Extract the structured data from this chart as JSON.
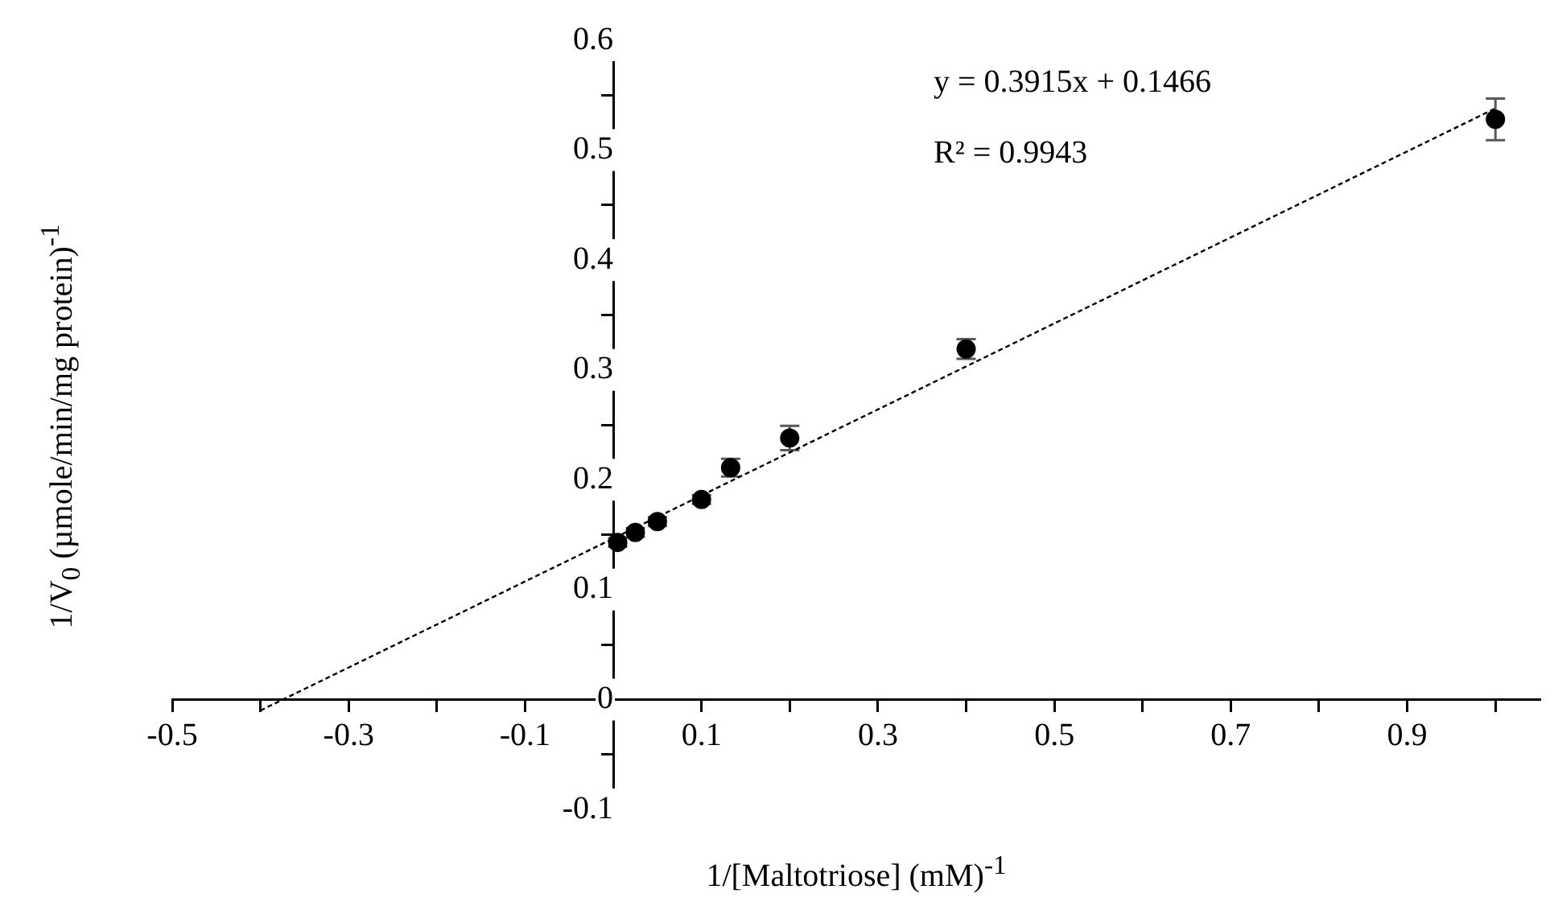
{
  "chart_data": {
    "type": "scatter",
    "xlabel": "1/[Maltotriose] (mM)$^{-1}$",
    "ylabel": "1/V$_{0}$ (µmole/min/mg protein)$^{-1}$",
    "annotations": [
      "y  = 0.3915x + 0.1466",
      "R² = 0.9943"
    ],
    "xlim": [
      -0.5,
      1.05
    ],
    "ylim": [
      -0.1,
      0.6
    ],
    "xticks": [
      -0.5,
      {
        "value": -0.4,
        "label": null
      },
      -0.3,
      {
        "value": -0.2,
        "label": null
      },
      -0.1,
      0.1,
      {
        "value": 0.2,
        "label": null
      },
      0.3,
      {
        "value": 0.4,
        "label": null
      },
      0.5,
      {
        "value": 0.6,
        "label": null
      },
      0.7,
      {
        "value": 0.8,
        "label": null
      },
      0.9,
      {
        "value": 1.0,
        "label": null
      }
    ],
    "yticks": [
      -0.1,
      {
        "value": -0.05,
        "label": null
      },
      0,
      {
        "value": 0.05,
        "label": null
      },
      0.1,
      {
        "value": 0.15,
        "label": null
      },
      0.2,
      {
        "value": 0.25,
        "label": null
      },
      0.3,
      {
        "value": 0.35,
        "label": null
      },
      0.4,
      {
        "value": 0.45,
        "label": null
      },
      0.5,
      {
        "value": 0.55,
        "label": null
      },
      0.6
    ],
    "grid": false,
    "legend": false,
    "series": [
      {
        "type": "line",
        "color": "#000000",
        "marker": "none",
        "line_style": "dotted",
        "x": [
          -0.4,
          1.0
        ],
        "values": [
          -0.01,
          0.538
        ]
      },
      {
        "type": "scatter",
        "color": "#000000",
        "marker": "circle",
        "x": [
          0.005,
          0.025,
          0.05,
          0.1,
          0.133,
          0.2,
          0.4,
          1.0
        ],
        "values": [
          0.143,
          0.152,
          0.162,
          0.182,
          0.211,
          0.238,
          0.319,
          0.528
        ],
        "errors": [
          0.004,
          0.004,
          0.004,
          0.004,
          0.008,
          0.011,
          0.009,
          0.019
        ]
      }
    ]
  }
}
